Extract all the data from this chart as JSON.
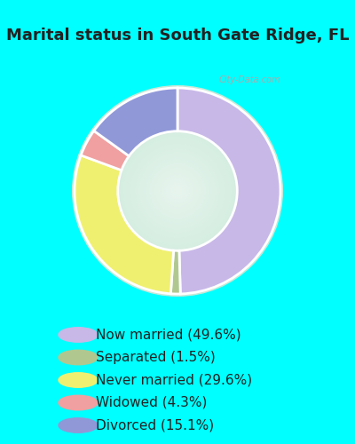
{
  "title": "Marital status in South Gate Ridge, FL",
  "slices": [
    {
      "label": "Now married (49.6%)",
      "value": 49.6,
      "color": "#c8b8e8"
    },
    {
      "label": "Separated (1.5%)",
      "value": 1.5,
      "color": "#b0c890"
    },
    {
      "label": "Never married (29.6%)",
      "value": 29.6,
      "color": "#f0f070"
    },
    {
      "label": "Widowed (4.3%)",
      "value": 4.3,
      "color": "#f0a0a0"
    },
    {
      "label": "Divorced (15.1%)",
      "value": 15.1,
      "color": "#9098d8"
    }
  ],
  "bg_color": "#00ffff",
  "chart_bg_color_center": "#e8f5ee",
  "chart_bg_color_edge": "#c8e8d8",
  "title_color": "#222222",
  "title_fontsize": 13,
  "legend_fontsize": 11,
  "watermark": "City-Data.com",
  "watermark_color": "#aaaaaa",
  "wedge_edge_color": "white",
  "wedge_linewidth": 2.0,
  "donut_width": 0.42
}
